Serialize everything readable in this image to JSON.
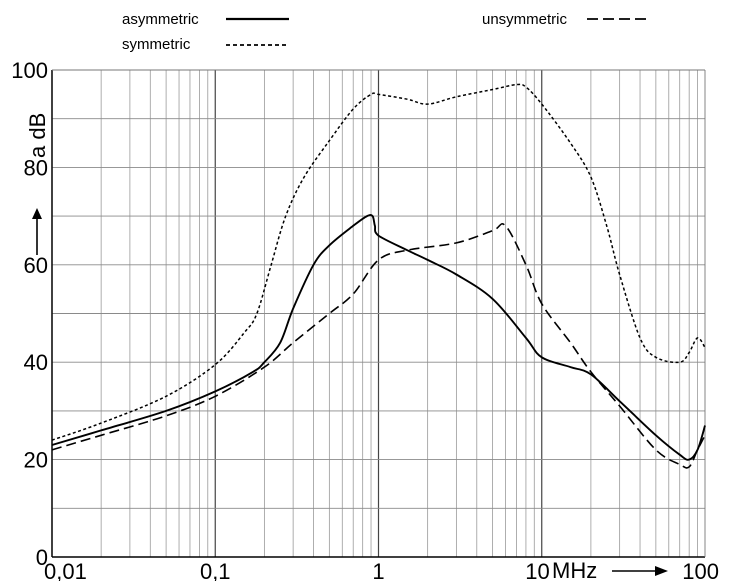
{
  "chart_data": {
    "type": "line",
    "x_scale": "log",
    "xlim": [
      0.01,
      100
    ],
    "ylim": [
      0,
      100
    ],
    "grid": true,
    "legend_position": "top",
    "xlabel": "MHz",
    "ylabel": "a dB",
    "x_tick_labels": [
      {
        "value": 0.01,
        "label": "0,01"
      },
      {
        "value": 0.1,
        "label": "0,1"
      },
      {
        "value": 1,
        "label": "1"
      },
      {
        "value": 10,
        "label": "10"
      },
      {
        "value": 100,
        "label": "100"
      }
    ],
    "y_tick_labels": [
      {
        "value": 0,
        "label": "0"
      },
      {
        "value": 20,
        "label": "20"
      },
      {
        "value": 40,
        "label": "40"
      },
      {
        "value": 60,
        "label": "60"
      },
      {
        "value": 80,
        "label": "80"
      },
      {
        "value": 100,
        "label": "100"
      }
    ],
    "series": [
      {
        "name": "asymmetric",
        "style": "solid",
        "x": [
          0.01,
          0.02,
          0.05,
          0.1,
          0.17,
          0.2,
          0.25,
          0.3,
          0.4,
          0.5,
          0.7,
          0.85,
          0.92,
          0.95,
          1.0,
          1.5,
          2,
          3,
          5,
          8,
          10,
          15,
          20,
          30,
          50,
          70,
          80,
          90,
          100
        ],
        "y": [
          23,
          26,
          30,
          34,
          38,
          40,
          44,
          51,
          60,
          64,
          68,
          70,
          70,
          68,
          66,
          63,
          61,
          58,
          53,
          45,
          41,
          39,
          37.5,
          32,
          25,
          21,
          20,
          22,
          27
        ]
      },
      {
        "name": "symmetric",
        "style": "dotted",
        "x": [
          0.01,
          0.02,
          0.05,
          0.1,
          0.15,
          0.18,
          0.22,
          0.27,
          0.35,
          0.5,
          0.7,
          0.9,
          1.0,
          1.5,
          2,
          3,
          5,
          7,
          8,
          10,
          15,
          20,
          25,
          30,
          40,
          50,
          70,
          80,
          90,
          100
        ],
        "y": [
          24,
          27.5,
          33,
          39.5,
          46,
          50,
          60,
          70,
          78,
          85.5,
          92,
          95,
          95,
          94,
          93,
          94.5,
          96,
          97,
          96.5,
          93,
          85,
          78,
          68,
          58,
          45,
          41,
          40,
          42,
          45,
          43
        ]
      },
      {
        "name": "unsymmetric",
        "style": "dashed",
        "x": [
          0.01,
          0.02,
          0.05,
          0.1,
          0.2,
          0.3,
          0.5,
          0.7,
          1.0,
          1.5,
          3,
          5,
          6,
          8,
          10,
          15,
          20,
          30,
          50,
          70,
          80,
          90,
          100
        ],
        "y": [
          22,
          25,
          29,
          33,
          39,
          44,
          50,
          54,
          61,
          63,
          64.5,
          67,
          68,
          60,
          52,
          44,
          38,
          31,
          22,
          19,
          18.5,
          22,
          25
        ]
      }
    ]
  },
  "legend": {
    "asymmetric_label": "asymmetric",
    "symmetric_label": "symmetric",
    "unsymmetric_label": "unsymmetric"
  }
}
